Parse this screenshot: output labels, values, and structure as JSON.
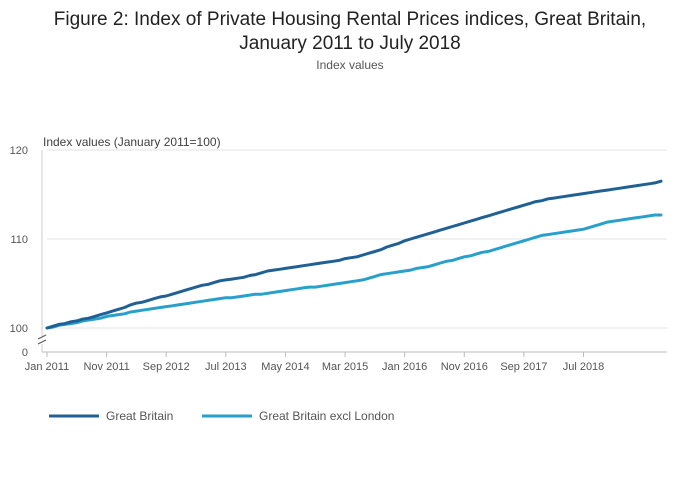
{
  "chart_data": {
    "type": "line",
    "title": "Figure 2: Index of Private Housing Rental Prices indices, Great Britain, January 2011 to July 2018",
    "title_lines": [
      "Figure 2: Index of Private Housing Rental Prices indices, Great Britain,",
      "January 2011 to July 2018"
    ],
    "subtitle": "Index values",
    "ylabel": "Index values (January 2011=100)",
    "xlabel": "",
    "y_ticks": [
      0,
      100,
      110,
      120
    ],
    "ylim": [
      100,
      120
    ],
    "axis_break": true,
    "x_ticks": [
      "Jan 2011",
      "Nov 2011",
      "Sep 2012",
      "Jul 2013",
      "May 2014",
      "Mar 2015",
      "Jan 2016",
      "Nov 2016",
      "Sep 2017",
      "Jul 2018"
    ],
    "x_start": "Jan 2011",
    "x_end": "Jul 2018",
    "grid": true,
    "legend_position": "bottom-left",
    "series": [
      {
        "name": "Great Britain",
        "color": "#206095",
        "values": [
          100.0,
          100.2,
          100.4,
          100.5,
          100.7,
          100.8,
          101.0,
          101.1,
          101.3,
          101.5,
          101.7,
          101.9,
          102.1,
          102.3,
          102.6,
          102.8,
          102.9,
          103.1,
          103.3,
          103.5,
          103.6,
          103.8,
          104.0,
          104.2,
          104.4,
          104.6,
          104.8,
          104.9,
          105.1,
          105.3,
          105.4,
          105.5,
          105.6,
          105.7,
          105.9,
          106.0,
          106.2,
          106.4,
          106.5,
          106.6,
          106.7,
          106.8,
          106.9,
          107.0,
          107.1,
          107.2,
          107.3,
          107.4,
          107.5,
          107.6,
          107.8,
          107.9,
          108.0,
          108.2,
          108.4,
          108.6,
          108.8,
          109.1,
          109.3,
          109.5,
          109.8,
          110.0,
          110.2,
          110.4,
          110.6,
          110.8,
          111.0,
          111.2,
          111.4,
          111.6,
          111.8,
          112.0,
          112.2,
          112.4,
          112.6,
          112.8,
          113.0,
          113.2,
          113.4,
          113.6,
          113.8,
          114.0,
          114.2,
          114.3,
          114.5,
          114.6,
          114.7,
          114.8,
          114.9,
          115.0,
          115.1,
          115.2,
          115.3,
          115.4,
          115.5,
          115.6,
          115.7,
          115.8,
          115.9,
          116.0,
          116.1,
          116.2,
          116.3,
          116.5
        ]
      },
      {
        "name": "Great Britain excl London",
        "color": "#27a0cc",
        "values": [
          100.0,
          100.1,
          100.3,
          100.4,
          100.5,
          100.6,
          100.8,
          100.9,
          101.0,
          101.1,
          101.3,
          101.4,
          101.5,
          101.6,
          101.8,
          101.9,
          102.0,
          102.1,
          102.2,
          102.3,
          102.4,
          102.5,
          102.6,
          102.7,
          102.8,
          102.9,
          103.0,
          103.1,
          103.2,
          103.3,
          103.4,
          103.4,
          103.5,
          103.6,
          103.7,
          103.8,
          103.8,
          103.9,
          104.0,
          104.1,
          104.2,
          104.3,
          104.4,
          104.5,
          104.6,
          104.6,
          104.7,
          104.8,
          104.9,
          105.0,
          105.1,
          105.2,
          105.3,
          105.4,
          105.6,
          105.8,
          106.0,
          106.1,
          106.2,
          106.3,
          106.4,
          106.5,
          106.7,
          106.8,
          106.9,
          107.1,
          107.3,
          107.5,
          107.6,
          107.8,
          108.0,
          108.1,
          108.3,
          108.5,
          108.6,
          108.8,
          109.0,
          109.2,
          109.4,
          109.6,
          109.8,
          110.0,
          110.2,
          110.4,
          110.5,
          110.6,
          110.7,
          110.8,
          110.9,
          111.0,
          111.1,
          111.3,
          111.5,
          111.7,
          111.9,
          112.0,
          112.1,
          112.2,
          112.3,
          112.4,
          112.5,
          112.6,
          112.7,
          112.7
        ]
      }
    ]
  }
}
